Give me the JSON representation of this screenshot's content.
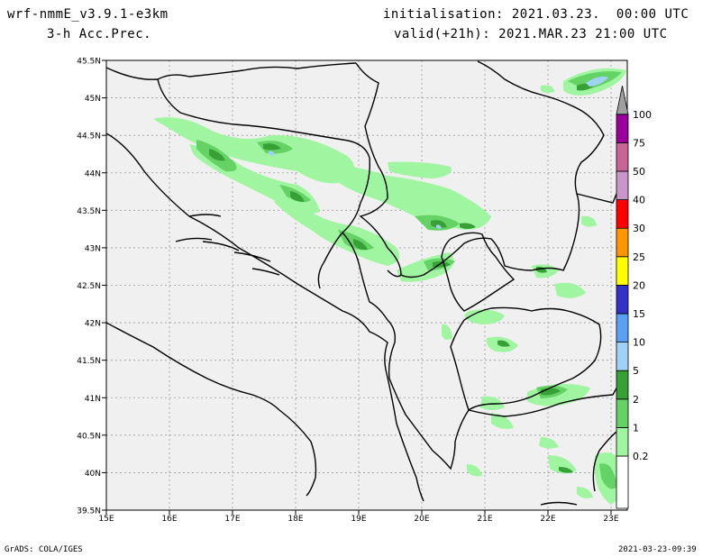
{
  "header": {
    "model": "wrf-nmmE_v3.9.1-e3km",
    "field": "3-h Acc.Prec.",
    "init": "initialisation: 2021.03.23.  00:00 UTC",
    "valid": "valid(+21h): 2021.MAR.23 21:00 UTC"
  },
  "axes": {
    "lat_ticks": [
      "45.5N",
      "45N",
      "44.5N",
      "44N",
      "43.5N",
      "43N",
      "42.5N",
      "42N",
      "41.5N",
      "41N",
      "40.5N",
      "40N",
      "39.5N"
    ],
    "lon_ticks": [
      "15E",
      "16E",
      "17E",
      "18E",
      "19E",
      "20E",
      "21E",
      "22E",
      "23E"
    ]
  },
  "legend": {
    "levels": [
      "0.2",
      "1",
      "2",
      "5",
      "10",
      "15",
      "20",
      "25",
      "30",
      "40",
      "50",
      "75",
      "100"
    ],
    "colors": [
      "#a0f5a0",
      "#64d264",
      "#37a037",
      "#a0d2f5",
      "#5aa0f5",
      "#3232c8",
      "#ffff00",
      "#ff9600",
      "#ff0000",
      "#c896c8",
      "#c86496",
      "#9b009b",
      "#a0a0a0"
    ]
  },
  "footer": {
    "left": "GrADS: COLA/IGES",
    "right": "2021-03-23-09:39"
  }
}
